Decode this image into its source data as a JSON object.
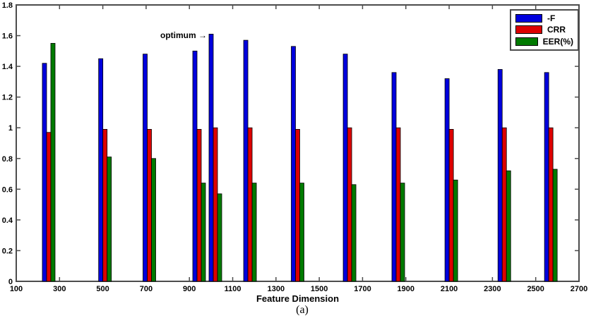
{
  "figure": {
    "background": "#ffffff",
    "frame_color": "#4c4c4c",
    "text_color": "#000000"
  },
  "chart_data": {
    "type": "bar",
    "title": "",
    "xlabel": "Feature Dimension",
    "caption": "(a)",
    "grid": false,
    "legend_position": "top-right",
    "xlim": [
      100,
      2700
    ],
    "ylim": [
      0,
      1.8
    ],
    "x_ticks": [
      100,
      300,
      500,
      700,
      900,
      1100,
      1300,
      1500,
      1700,
      1900,
      2100,
      2300,
      2500,
      2700
    ],
    "y_tick_labels": [
      "0",
      "0.2",
      "0.4",
      "0.6",
      "0.8",
      "1",
      "1.2",
      "1.4",
      "1.6",
      "1.8"
    ],
    "categories": [
      250,
      510,
      715,
      945,
      1020,
      1180,
      1400,
      1640,
      1865,
      2110,
      2355,
      2570
    ],
    "series": [
      {
        "name": "-F",
        "color": "#0000dd",
        "values": [
          1.42,
          1.45,
          1.48,
          1.5,
          1.61,
          1.57,
          1.53,
          1.48,
          1.36,
          1.32,
          1.38,
          1.36
        ]
      },
      {
        "name": "CRR",
        "color": "#dd0000",
        "values": [
          0.97,
          0.99,
          0.99,
          0.99,
          1.0,
          1.0,
          0.99,
          1.0,
          1.0,
          0.99,
          1.0,
          1.0
        ]
      },
      {
        "name": "EER(%)",
        "color": "#007a00",
        "values": [
          1.55,
          0.81,
          0.8,
          0.64,
          0.57,
          0.64,
          0.64,
          0.63,
          0.64,
          0.66,
          0.72,
          0.73
        ]
      }
    ],
    "annotation": {
      "text": "optimum →",
      "target_group_index": 4,
      "target_series": "-F",
      "y_value": 1.6
    }
  }
}
